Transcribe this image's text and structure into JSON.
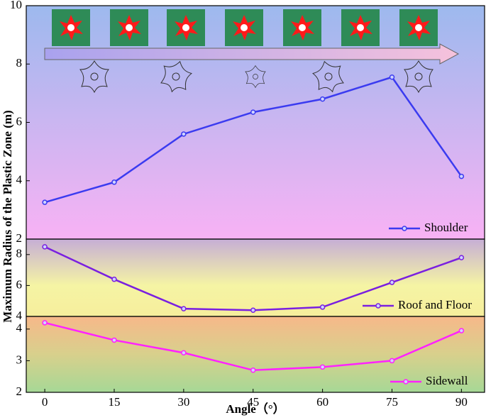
{
  "chart_data": [
    {
      "type": "line",
      "ylabel": "Maximum Radius of the Plastic Zone (m)",
      "x": [
        0,
        15,
        30,
        45,
        60,
        75,
        90
      ],
      "series": [
        {
          "name": "Shoulder",
          "color": "#3b3bf0",
          "values": [
            3.26,
            3.95,
            5.6,
            6.35,
            6.8,
            7.55,
            4.15
          ]
        }
      ],
      "xlim": [
        -4,
        95
      ],
      "ylim": [
        2,
        10
      ],
      "yticks": [
        2,
        4,
        6,
        8,
        10
      ],
      "legend": "lower right"
    },
    {
      "type": "line",
      "x": [
        0,
        15,
        30,
        45,
        60,
        75,
        90
      ],
      "series": [
        {
          "name": "Roof and Floor",
          "color": "#7a1fe0",
          "values": [
            8.5,
            6.4,
            4.5,
            4.4,
            4.6,
            6.2,
            7.8
          ]
        }
      ],
      "xlim": [
        -4,
        95
      ],
      "ylim": [
        4,
        9
      ],
      "yticks": [
        4,
        6,
        8
      ],
      "legend": "lower right"
    },
    {
      "type": "line",
      "xlabel": "Angle（°）",
      "x": [
        0,
        15,
        30,
        45,
        60,
        75,
        90
      ],
      "series": [
        {
          "name": "Sidewall",
          "color": "#ff22ff",
          "values": [
            4.2,
            3.65,
            3.25,
            2.7,
            2.8,
            3.0,
            3.95
          ]
        }
      ],
      "xlim": [
        -4,
        95
      ],
      "ylim": [
        2,
        4.4
      ],
      "xticks": [
        0,
        15,
        30,
        45,
        60,
        75,
        90
      ],
      "yticks": [
        2,
        3,
        4
      ],
      "legend": "lower right"
    }
  ]
}
